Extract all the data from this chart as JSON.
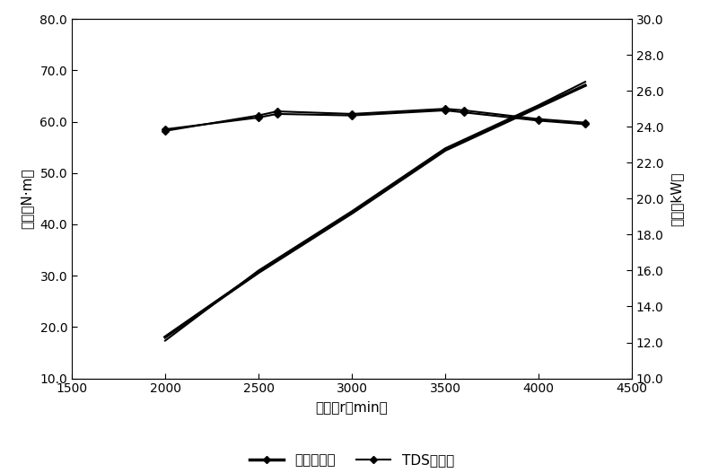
{
  "x_rpm": [
    2000,
    2500,
    2600,
    3000,
    3500,
    3600,
    4000,
    4250
  ],
  "torque_ref": [
    58.5,
    60.8,
    61.5,
    61.2,
    62.2,
    61.8,
    60.2,
    59.5
  ],
  "torque_tds": [
    58.2,
    61.2,
    62.0,
    61.5,
    62.5,
    62.2,
    60.5,
    59.8
  ],
  "power_x": [
    2000,
    2500,
    3000,
    3500,
    4000,
    4250
  ],
  "power_ref": [
    12.3,
    15.9,
    19.2,
    22.7,
    25.1,
    26.3
  ],
  "power_tds": [
    12.1,
    16.0,
    19.3,
    22.8,
    25.2,
    26.5
  ],
  "xlim": [
    1500,
    4500
  ],
  "ylim_left": [
    10.0,
    80.0
  ],
  "ylim_right": [
    10.0,
    30.0
  ],
  "yticks_left": [
    10.0,
    20.0,
    30.0,
    40.0,
    50.0,
    60.0,
    70.0,
    80.0
  ],
  "yticks_right": [
    10.0,
    12.0,
    14.0,
    16.0,
    18.0,
    20.0,
    22.0,
    24.0,
    26.0,
    28.0,
    30.0
  ],
  "xticks": [
    1500,
    2000,
    2500,
    3000,
    3500,
    4000,
    4500
  ],
  "xlabel": "转速（r／min）",
  "ylabel_left": "扭矩（N·m）",
  "ylabel_right": "功率（kW）",
  "legend_ref": "参比润滑油",
  "legend_tds": "TDS润滑油",
  "line_color": "#000000",
  "bg_color": "#ffffff"
}
